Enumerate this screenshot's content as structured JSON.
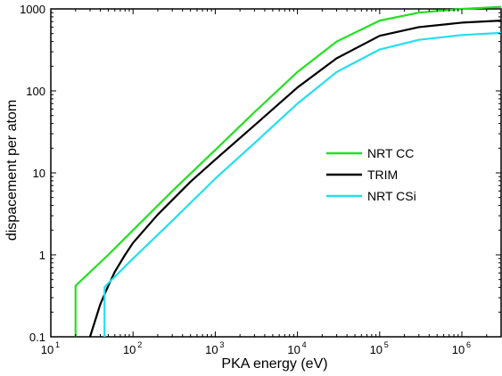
{
  "chart_data": {
    "type": "line",
    "title": "",
    "xlabel": "PKA energy (eV)",
    "ylabel": "dispacement per atom",
    "x_scale": "log",
    "y_scale": "log",
    "xlim": [
      10,
      3000000
    ],
    "ylim": [
      0.1,
      1000
    ],
    "grid": false,
    "legend_position": "center-right",
    "x_ticks": [
      {
        "value": 10,
        "base": "10",
        "exp": "1"
      },
      {
        "value": 100,
        "base": "10",
        "exp": "2"
      },
      {
        "value": 1000,
        "base": "10",
        "exp": "3"
      },
      {
        "value": 10000,
        "base": "10",
        "exp": "4"
      },
      {
        "value": 100000,
        "base": "10",
        "exp": "5"
      },
      {
        "value": 1000000,
        "base": "10",
        "exp": "6"
      }
    ],
    "y_ticks": [
      {
        "value": 0.1,
        "label": "0.1"
      },
      {
        "value": 1,
        "label": "1"
      },
      {
        "value": 10,
        "label": "10"
      },
      {
        "value": 100,
        "label": "100"
      },
      {
        "value": 1000,
        "label": "1000"
      }
    ],
    "series": [
      {
        "name": "NRT CC",
        "color": "#22e022",
        "x": [
          20,
          20,
          50,
          100,
          300,
          1000,
          3000,
          10000,
          30000,
          100000,
          300000,
          1000000,
          3000000
        ],
        "y": [
          0.1,
          0.42,
          1.0,
          2.0,
          6.0,
          19,
          55,
          170,
          400,
          720,
          900,
          1000,
          1060
        ]
      },
      {
        "name": "TRIM",
        "color": "#000000",
        "x": [
          30,
          40,
          50,
          60,
          80,
          100,
          200,
          500,
          1000,
          3000,
          10000,
          30000,
          100000,
          300000,
          1000000,
          3000000
        ],
        "y": [
          0.1,
          0.25,
          0.42,
          0.62,
          1.0,
          1.4,
          3.1,
          7.8,
          14.5,
          38,
          110,
          250,
          470,
          600,
          680,
          720
        ]
      },
      {
        "name": "NRT CSi",
        "color": "#22dfef",
        "x": [
          45,
          45,
          50,
          100,
          300,
          1000,
          3000,
          10000,
          30000,
          100000,
          300000,
          1000000,
          3000000
        ],
        "y": [
          0.1,
          0.4,
          0.45,
          0.9,
          2.6,
          8.5,
          23,
          70,
          170,
          320,
          420,
          480,
          510
        ]
      }
    ]
  }
}
